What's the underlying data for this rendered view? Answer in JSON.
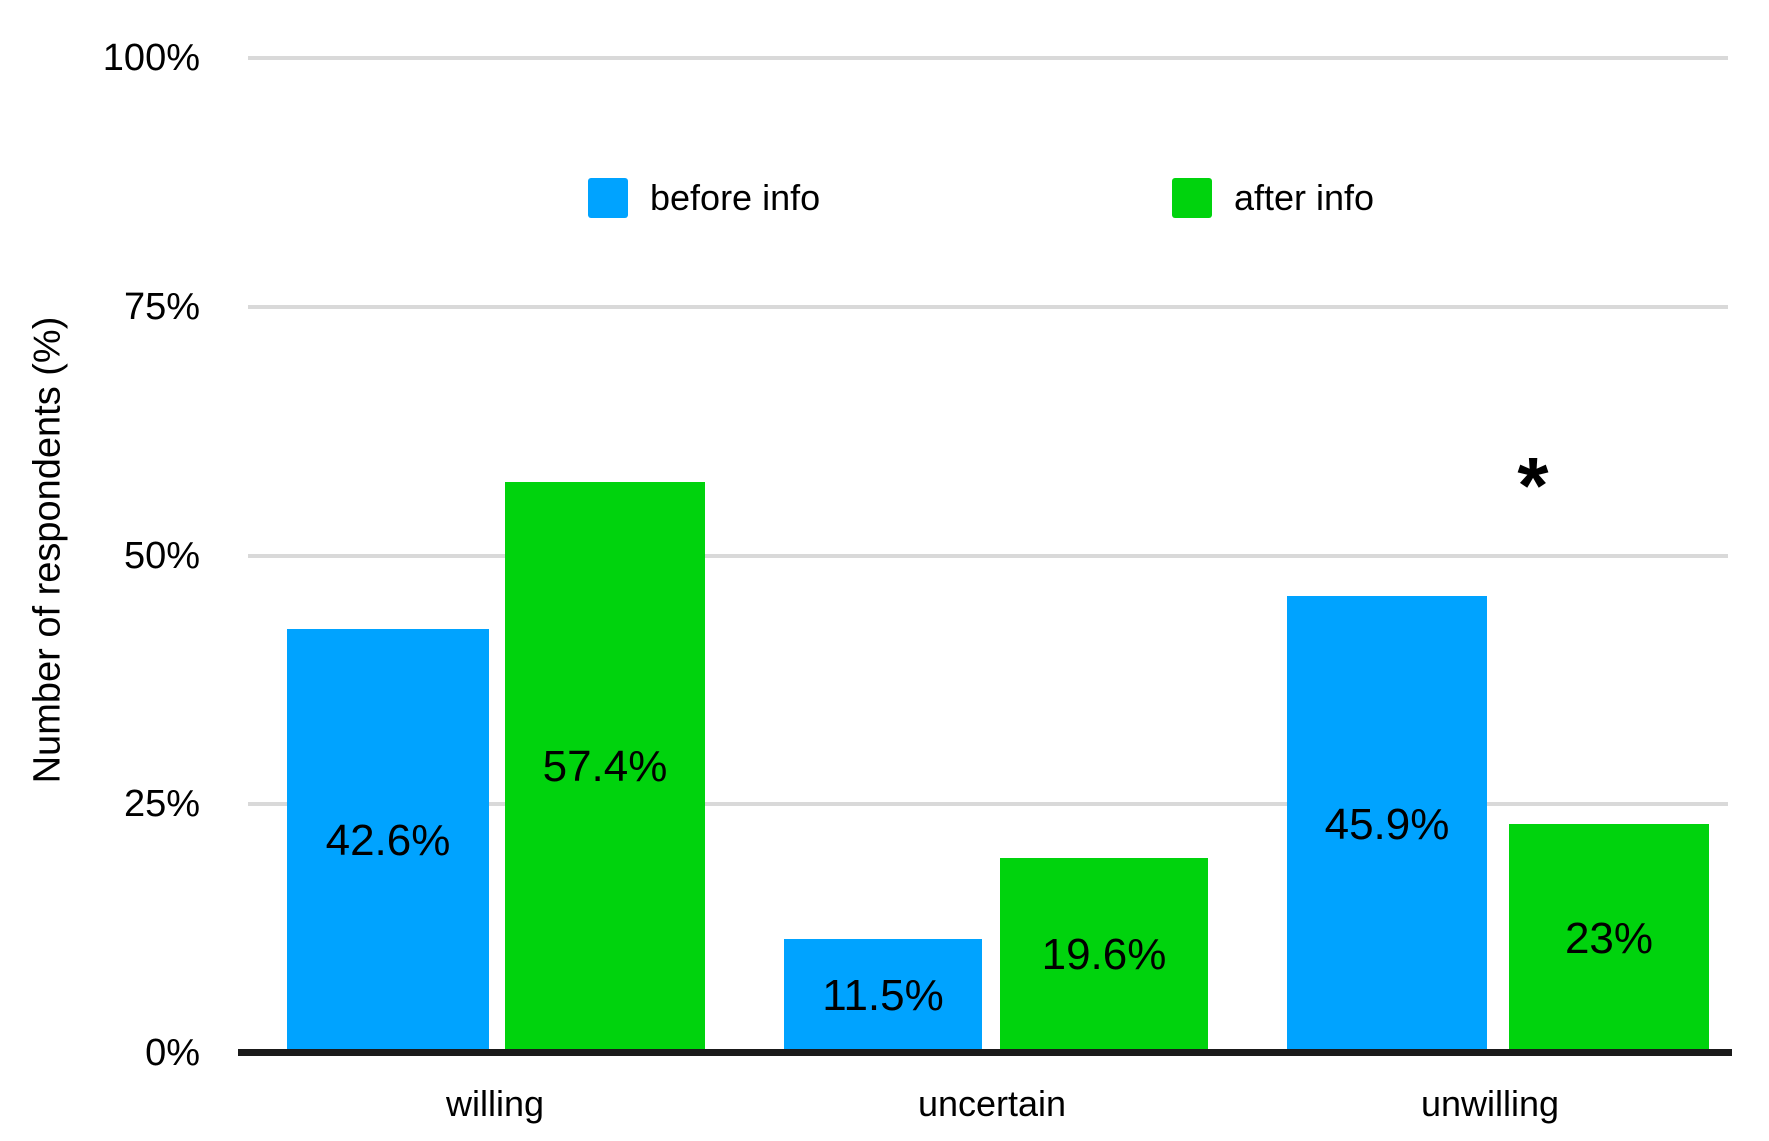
{
  "y_axis": {
    "title": "Number of respondents (%)",
    "ticks": [
      "100%",
      "75%",
      "50%",
      "25%",
      "0%"
    ]
  },
  "x_axis": {
    "categories": [
      "willing",
      "uncertain",
      "unwilling"
    ]
  },
  "legend": {
    "items": [
      {
        "label": "before info",
        "color": "#00A3FF"
      },
      {
        "label": "after info",
        "color": "#00D30D"
      }
    ]
  },
  "chart_data": {
    "type": "bar",
    "categories": [
      "willing",
      "uncertain",
      "unwilling"
    ],
    "series": [
      {
        "name": "before info",
        "color": "#00A3FF",
        "values": [
          42.6,
          11.5,
          45.9
        ],
        "labels": [
          "42.6%",
          "11.5%",
          "45.9%"
        ]
      },
      {
        "name": "after info",
        "color": "#00D30D",
        "values": [
          57.4,
          19.6,
          23
        ],
        "labels": [
          "57.4%",
          "19.6%",
          "23%"
        ]
      }
    ],
    "title": "",
    "xlabel": "",
    "ylabel": "Number of respondents (%)",
    "ylim": [
      0,
      100
    ],
    "ytick_values": [
      0,
      25,
      50,
      75,
      100
    ],
    "grid": true,
    "legend_position": "top",
    "annotation": {
      "text": "*",
      "category": "unwilling"
    }
  }
}
